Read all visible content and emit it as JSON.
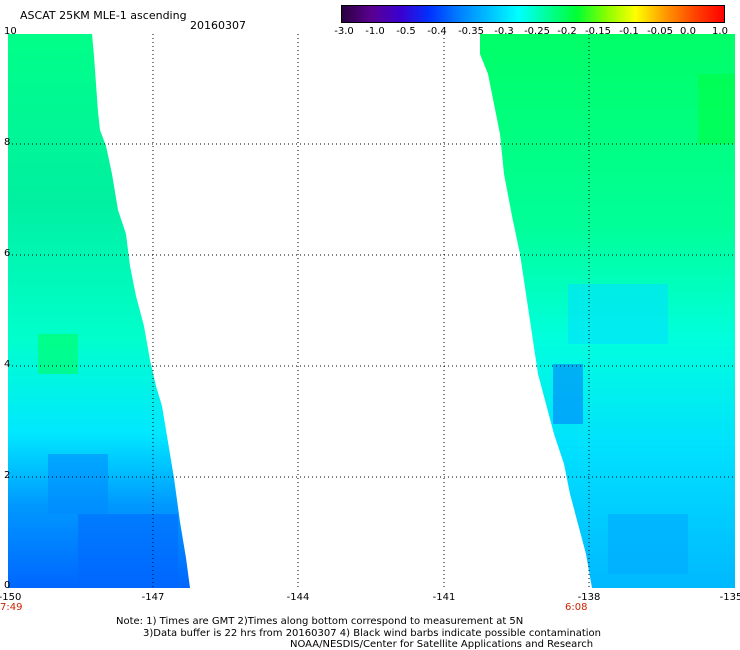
{
  "title": "ASCAT 25KM MLE-1 ascending",
  "date": "20160307",
  "colorbar": {
    "ticks": [
      "-3.0",
      "-1.0",
      "-0.5",
      "-0.4",
      "-0.35",
      "-0.3",
      "-0.25",
      "-0.2",
      "-0.15",
      "-0.1",
      "-0.05",
      "0.0",
      "1.0"
    ],
    "colors": [
      "#2a0040",
      "#5a0090",
      "#3a00d0",
      "#0033ff",
      "#0080ff",
      "#00c0ff",
      "#00ffff",
      "#00ff99",
      "#00ff33",
      "#88ff00",
      "#ffff00",
      "#ff9900",
      "#ff4400",
      "#ff0000"
    ]
  },
  "axes": {
    "y_ticks": [
      "0",
      "2",
      "4",
      "6",
      "8",
      "10"
    ],
    "x_ticks": [
      "-150",
      "-147",
      "-144",
      "-141",
      "-138",
      "-135"
    ],
    "time_left": "7:49",
    "time_right": "6:08"
  },
  "notes": [
    "Note: 1) Times are GMT 2)Times along bottom correspond to measurement at 5N",
    "3)Data buffer is 22 hrs from 20160307 4) Black wind barbs indicate possible contamination",
    "NOAA/NESDIS/Center for Satellite Applications and Research"
  ]
}
